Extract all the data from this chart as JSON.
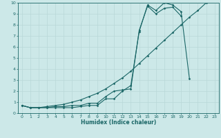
{
  "xlabel": "Humidex (Indice chaleur)",
  "bg_color": "#cce8e8",
  "grid_color": "#b8d8d8",
  "line_color": "#1a6666",
  "xlim": [
    -0.5,
    23.5
  ],
  "ylim": [
    0,
    10
  ],
  "xticks": [
    0,
    1,
    2,
    3,
    4,
    5,
    6,
    7,
    8,
    9,
    10,
    11,
    12,
    13,
    14,
    15,
    16,
    17,
    18,
    19,
    20,
    21,
    22,
    23
  ],
  "yticks": [
    0,
    1,
    2,
    3,
    4,
    5,
    6,
    7,
    8,
    9,
    10
  ],
  "line1_x": [
    0,
    1,
    2,
    3,
    4,
    5,
    6,
    7,
    8,
    9,
    10,
    11,
    12,
    13,
    14,
    15,
    16,
    17,
    18,
    19,
    20
  ],
  "line1_y": [
    0.7,
    0.5,
    0.5,
    0.5,
    0.5,
    0.5,
    0.5,
    0.6,
    0.7,
    0.7,
    1.3,
    1.3,
    2.0,
    2.5,
    7.4,
    9.8,
    9.3,
    10.0,
    9.8,
    9.2,
    3.1
  ],
  "line2_x": [
    0,
    1,
    2,
    3,
    4,
    5,
    6,
    7,
    8,
    9,
    10,
    11,
    12,
    13,
    14,
    15,
    16,
    17,
    18,
    19
  ],
  "line2_y": [
    0.7,
    0.5,
    0.5,
    0.5,
    0.6,
    0.6,
    0.7,
    0.7,
    0.9,
    0.9,
    1.5,
    2.0,
    2.1,
    2.2,
    7.5,
    9.7,
    9.0,
    9.5,
    9.6,
    8.8
  ],
  "line3_x": [
    0,
    1,
    2,
    3,
    4,
    5,
    6,
    7,
    8,
    9,
    10,
    11,
    12,
    13,
    14,
    15,
    16,
    17,
    18,
    19,
    20,
    21,
    22
  ],
  "line3_y": [
    0.7,
    0.5,
    0.5,
    0.6,
    0.7,
    0.8,
    1.0,
    1.2,
    1.5,
    1.8,
    2.2,
    2.7,
    3.2,
    3.8,
    4.5,
    5.2,
    5.9,
    6.6,
    7.3,
    8.0,
    8.7,
    9.3,
    10.0
  ]
}
